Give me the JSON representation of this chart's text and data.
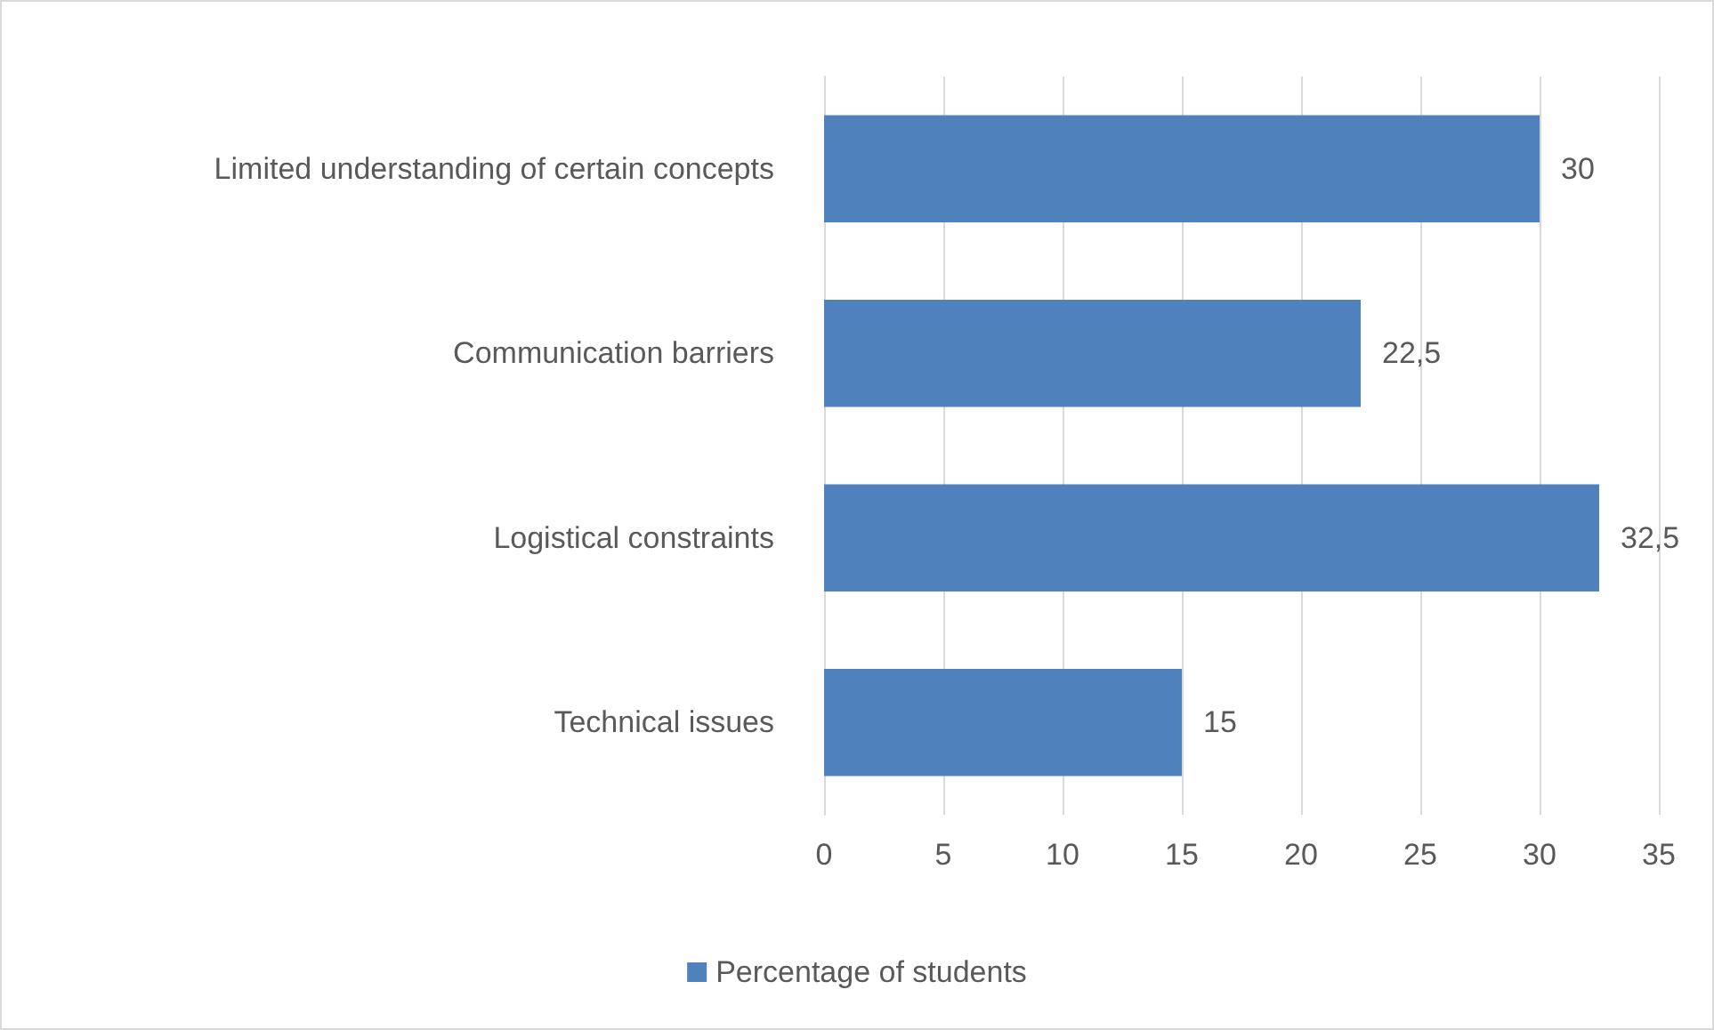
{
  "chart_data": {
    "type": "bar",
    "orientation": "horizontal",
    "categories": [
      "Limited understanding of certain concepts",
      "Communication barriers",
      "Logistical constraints",
      "Technical issues"
    ],
    "series": [
      {
        "name": "Percentage of students",
        "color": "#4f81bd",
        "values": [
          30,
          22.5,
          32.5,
          15
        ],
        "value_labels": [
          "30",
          "22,5",
          "32,5",
          "15"
        ]
      }
    ],
    "xlim": [
      0,
      35
    ],
    "xticks": [
      0,
      5,
      10,
      15,
      20,
      25,
      30,
      35
    ],
    "grid": "x",
    "legend": "bottom"
  }
}
